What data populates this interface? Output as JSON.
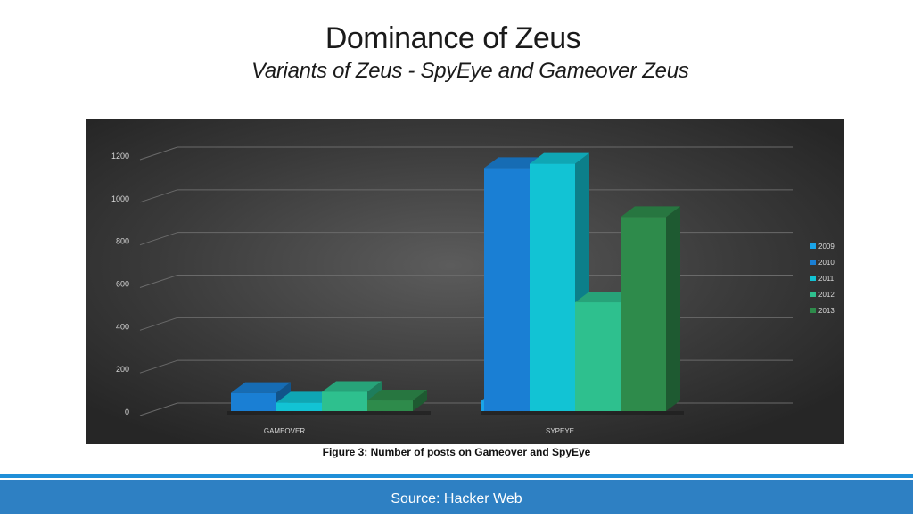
{
  "title": "Dominance of Zeus",
  "subtitle": "Variants of Zeus - SpyEye and Gameover Zeus",
  "caption": "Figure 3: Number of posts on Gameover and SpyEye",
  "footer": "Source: Hacker Web",
  "chart_data": {
    "type": "bar",
    "categories": [
      "GAMEOVER",
      "SYPEYE"
    ],
    "series": [
      {
        "name": "2009",
        "values": [
          0,
          50
        ],
        "color": "#1aa4e8"
      },
      {
        "name": "2010",
        "values": [
          85,
          1140
        ],
        "color": "#1a7fd4"
      },
      {
        "name": "2011",
        "values": [
          40,
          1160
        ],
        "color": "#12c3d4"
      },
      {
        "name": "2012",
        "values": [
          90,
          510
        ],
        "color": "#2ec08e"
      },
      {
        "name": "2013",
        "values": [
          50,
          910
        ],
        "color": "#2e8b4b"
      }
    ],
    "yticks": [
      0,
      200,
      400,
      600,
      800,
      1000,
      1200
    ],
    "ylim": [
      0,
      1200
    ],
    "xlabel": "",
    "ylabel": "",
    "grid": true,
    "legend": "right",
    "background": "#3a3a3a"
  }
}
